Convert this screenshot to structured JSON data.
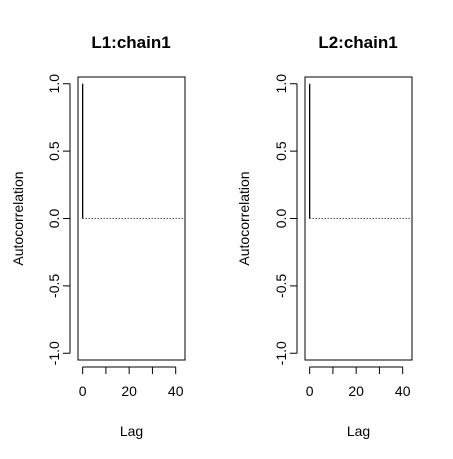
{
  "chart_data": [
    {
      "type": "bar",
      "title": "L1:chain1",
      "xlabel": "Lag",
      "ylabel": "Autocorrelation",
      "xlim": [
        -2,
        44
      ],
      "ylim": [
        -1.05,
        1.05
      ],
      "x_ticks": [
        0,
        10,
        20,
        30,
        40
      ],
      "x_tick_labels": [
        "0",
        "",
        "20",
        "",
        "40"
      ],
      "y_ticks": [
        -1.0,
        -0.5,
        0.0,
        0.5,
        1.0
      ],
      "y_tick_labels": [
        "-1.0",
        "-0.5",
        "0.0",
        "0.5",
        "1.0"
      ],
      "lags": [
        0,
        1
      ],
      "values": [
        1.0,
        0.0
      ],
      "zero_line_to": 43,
      "grid": false
    },
    {
      "type": "bar",
      "title": "L2:chain1",
      "xlabel": "Lag",
      "ylabel": "Autocorrelation",
      "xlim": [
        -2,
        44
      ],
      "ylim": [
        -1.05,
        1.05
      ],
      "x_ticks": [
        0,
        10,
        20,
        30,
        40
      ],
      "x_tick_labels": [
        "0",
        "",
        "20",
        "",
        "40"
      ],
      "y_ticks": [
        -1.0,
        -0.5,
        0.0,
        0.5,
        1.0
      ],
      "y_tick_labels": [
        "-1.0",
        "-0.5",
        "0.0",
        "0.5",
        "1.0"
      ],
      "lags": [
        0,
        1
      ],
      "values": [
        1.0,
        0.0
      ],
      "zero_line_to": 43,
      "grid": false
    }
  ]
}
